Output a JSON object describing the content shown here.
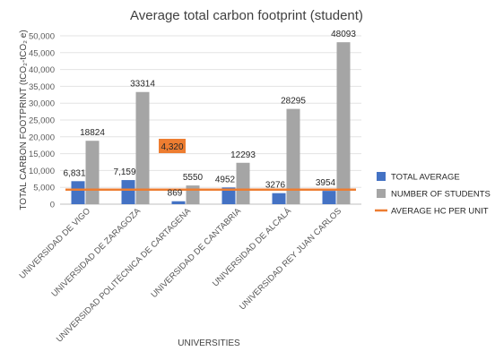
{
  "chart_data": {
    "type": "bar",
    "title": "Average total carbon footprint (student)",
    "xlabel": "UNIVERSITIES",
    "ylabel": "TOTAL CARBON FOOTPRINT (tCO₂-tCO₂ e)",
    "ylim": [
      0,
      50000
    ],
    "yticks": [
      "0",
      "5,000",
      "10,000",
      "15,000",
      "20,000",
      "25,000",
      "30,000",
      "35,000",
      "40,000",
      "45,000",
      "50,000"
    ],
    "ytick_values": [
      0,
      5000,
      10000,
      15000,
      20000,
      25000,
      30000,
      35000,
      40000,
      45000,
      50000
    ],
    "grid": true,
    "legend_position": "right",
    "categories": [
      "UNIVERSIDAD DE VIGO",
      "UNIVERSIDAD DE ZARAGOZA",
      "UNIVERSIDAD POLITÉCNICA DE CARTAGENA",
      "UNIVERSIDAD DE CANTABRIA",
      "UNIVERSIDAD DE ALCALÁ",
      "UNIVERSIDAD REY JUAN CARLOS"
    ],
    "series": [
      {
        "name": "TOTAL AVERAGE",
        "kind": "bar",
        "color": "#4472C4",
        "values": [
          6831,
          7159,
          869,
          4952,
          3276,
          3954
        ],
        "labels": [
          "6,831",
          "7,159",
          "869",
          "4952",
          "3276",
          "3954"
        ]
      },
      {
        "name": "NUMBER OF STUDENTS",
        "kind": "bar",
        "color": "#A5A5A5",
        "values": [
          18824,
          33314,
          5550,
          12293,
          28295,
          48093
        ],
        "labels": [
          "18824",
          "33314",
          "5550",
          "12293",
          "28295",
          "48093"
        ]
      },
      {
        "name": "AVERAGE HC PER UNIT",
        "kind": "line",
        "color": "#ED7D31",
        "value": 4320,
        "label": "4,320"
      }
    ]
  }
}
